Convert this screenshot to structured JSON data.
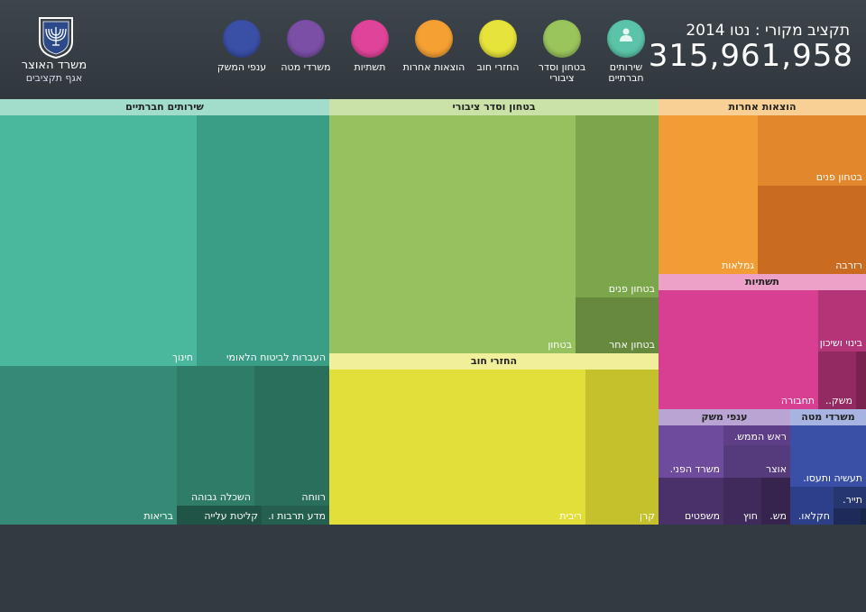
{
  "header": {
    "ministry_name": "משרד האוצר",
    "ministry_sub": "אגף תקציבים",
    "budget_label": "תקציב מקורי : נטו 2014",
    "budget_total": "315,961,958"
  },
  "legend": [
    {
      "label": "שירותים חברתיים",
      "color": "#5bc4a8",
      "icon": "person-icon"
    },
    {
      "label": "בטחון וסדר ציבורי",
      "color": "#9ac45c",
      "icon": ""
    },
    {
      "label": "החזרי חוב",
      "color": "#e6e33a",
      "icon": ""
    },
    {
      "label": "הוצאות אחרות",
      "color": "#f5a033",
      "icon": ""
    },
    {
      "label": "תשתיות",
      "color": "#e0449a",
      "icon": ""
    },
    {
      "label": "משרדי מטה",
      "color": "#7b4fa6",
      "icon": ""
    },
    {
      "label": "ענפי המשק",
      "color": "#3a4fa6",
      "icon": ""
    }
  ],
  "chart_data": {
    "type": "treemap",
    "total": "315,961,958",
    "groups": [
      {
        "name": "שירותים חברתיים",
        "items": [
          "חינוך",
          "העברות לביטוח הלאומי",
          "בריאות",
          "השכלה גבוהה",
          "רווחה",
          "קליטת עלייה",
          "מדע תרבות ו."
        ]
      },
      {
        "name": "בטחון וסדר ציבורי",
        "items": [
          "בטחון",
          "בטחון פנים",
          "בטחון אחר"
        ]
      },
      {
        "name": "החזרי חוב",
        "items": [
          "ריבית",
          "קרן"
        ]
      },
      {
        "name": "הוצאות אחרות",
        "items": [
          "גמלאות",
          "בטחון פנים",
          "רזרבה"
        ]
      },
      {
        "name": "תשתיות",
        "items": [
          "תחבורה",
          "בינוי ושיכון",
          "משק.."
        ]
      },
      {
        "name": "ענפי משק",
        "items": [
          "משרד הפני.",
          "ראש הממש.",
          "אוצר",
          "משפטים",
          "חוץ",
          "מש."
        ]
      },
      {
        "name": "משרדי מטה",
        "items": [
          "תעשיה ותעסו.",
          "חקלאו.",
          "תייר."
        ]
      }
    ]
  },
  "treemap": {
    "social": {
      "title": "שירותים חברתיים",
      "education": "חינוך",
      "insurance": "העברות לביטוח הלאומי",
      "health": "בריאות",
      "higher_ed": "השכלה גבוהה",
      "welfare": "רווחה",
      "absorption": "קליטת עלייה",
      "science": "מדע תרבות ו."
    },
    "security": {
      "title": "בטחון וסדר ציבורי",
      "defense": "בטחון",
      "internal": "בטחון פנים",
      "other": "בטחון אחר"
    },
    "debt": {
      "title": "החזרי חוב",
      "interest": "ריבית",
      "principal": "קרן"
    },
    "other": {
      "title": "הוצאות אחרות",
      "pensions": "גמלאות",
      "internal": "בטחון פנים",
      "reserve": "רזרבה"
    },
    "infra": {
      "title": "תשתיות",
      "transport": "תחבורה",
      "housing": "בינוי ושיכון",
      "misc": "משק.."
    },
    "economy": {
      "title": "ענפי משק",
      "interior": "משרד הפני.",
      "pm": "ראש הממש.",
      "treasury": "אוצר",
      "justice": "משפטים",
      "foreign": "חוץ",
      "misc": "מש."
    },
    "hq": {
      "title": "משרדי מטה",
      "industry": "תעשיה ותעסו.",
      "agri": "חקלאו.",
      "tourism": "תייר."
    }
  }
}
